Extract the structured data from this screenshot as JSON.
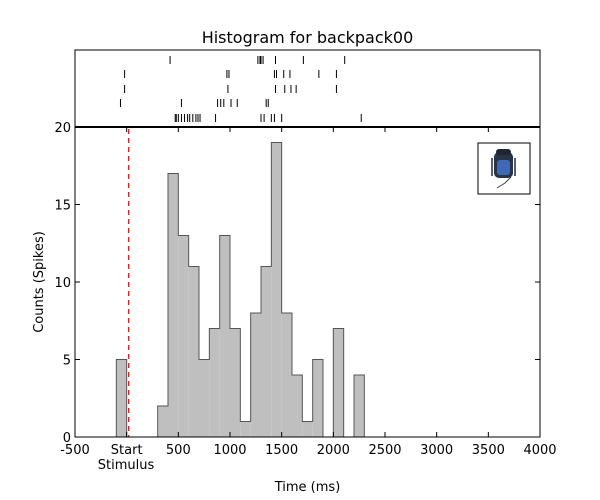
{
  "chart_data": {
    "type": "bar",
    "title": "Histogram for backpack00",
    "xlabel": "Time (ms)",
    "ylabel": "Counts (Spikes)",
    "xlim": [
      -500,
      4000
    ],
    "ylim": [
      0,
      20
    ],
    "grid": false,
    "bin_width": 100,
    "x_tick_labels": [
      "-500",
      "Start",
      "500",
      "1000",
      "1500",
      "2000",
      "2500",
      "3000",
      "3500",
      "4000"
    ],
    "x_tick_values": [
      -500,
      0,
      500,
      1000,
      1500,
      2000,
      2500,
      3000,
      3500,
      4000
    ],
    "stimulus_label": "Stimulus",
    "stimulus_time": 0,
    "y_tick_labels": [
      "0",
      "5",
      "10",
      "15",
      "20"
    ],
    "y_tick_values": [
      0,
      5,
      10,
      15,
      20
    ],
    "bins": [
      {
        "x0": -100,
        "count": 5
      },
      {
        "x0": 0,
        "count": 0
      },
      {
        "x0": 100,
        "count": 0
      },
      {
        "x0": 200,
        "count": 0
      },
      {
        "x0": 300,
        "count": 2
      },
      {
        "x0": 400,
        "count": 17
      },
      {
        "x0": 500,
        "count": 13
      },
      {
        "x0": 600,
        "count": 11
      },
      {
        "x0": 700,
        "count": 5
      },
      {
        "x0": 800,
        "count": 7
      },
      {
        "x0": 900,
        "count": 13
      },
      {
        "x0": 1000,
        "count": 7
      },
      {
        "x0": 1100,
        "count": 1
      },
      {
        "x0": 1200,
        "count": 8
      },
      {
        "x0": 1300,
        "count": 11
      },
      {
        "x0": 1400,
        "count": 19
      },
      {
        "x0": 1500,
        "count": 8
      },
      {
        "x0": 1600,
        "count": 4
      },
      {
        "x0": 1700,
        "count": 1
      },
      {
        "x0": 1800,
        "count": 5
      },
      {
        "x0": 1900,
        "count": 0
      },
      {
        "x0": 2000,
        "count": 7
      },
      {
        "x0": 2100,
        "count": 0
      },
      {
        "x0": 2200,
        "count": 4
      },
      {
        "x0": 2300,
        "count": 0
      }
    ],
    "raster_trials": [
      [
        420,
        1270,
        1290,
        1300,
        1320,
        1440,
        1710,
        2110
      ],
      [
        -20,
        970,
        990,
        1430,
        1450,
        1520,
        1580,
        1860,
        2030
      ],
      [
        -20,
        980,
        1440,
        1530,
        1590,
        1640,
        2030
      ],
      [
        -60,
        530,
        880,
        910,
        940,
        1010,
        1070,
        1350,
        1370
      ],
      [
        470,
        480,
        500,
        530,
        560,
        590,
        610,
        640,
        670,
        690,
        710,
        860,
        1300,
        1330,
        1400,
        1430,
        1500,
        2270
      ]
    ],
    "colors": {
      "bar_fill": "#bfbfbf",
      "bar_edge": "#555555",
      "stimulus_line": "#dd2222",
      "raster_tick": "#000000"
    }
  },
  "inset_icon": "backpack-icon"
}
